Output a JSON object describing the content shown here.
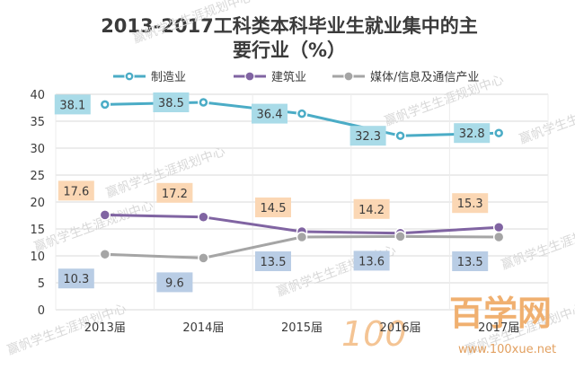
{
  "chart_data": {
    "type": "line",
    "title_line1": "2013-2017工科类本科毕业生就业集中的主",
    "title_line2": "要行业（%）",
    "categories": [
      "2013届",
      "2014届",
      "2015届",
      "2016届",
      "2017届"
    ],
    "ylim": [
      0,
      40
    ],
    "yticks": [
      0,
      5,
      10,
      15,
      20,
      25,
      30,
      35,
      40
    ],
    "yticks_text": [
      "0",
      "5",
      "10",
      "15",
      "20",
      "25",
      "30",
      "35",
      "40"
    ],
    "grid": true,
    "legend_position": "top",
    "series": [
      {
        "name": "制造业",
        "color": "#4bacc6",
        "label_bg": "#a9dbe8",
        "values": [
          38.1,
          38.5,
          36.4,
          32.3,
          32.8
        ],
        "labels": [
          "38.1",
          "38.5",
          "36.4",
          "32.3",
          "32.8"
        ]
      },
      {
        "name": "建筑业",
        "color": "#8064a2",
        "label_bg": "#fbd7b4",
        "values": [
          17.6,
          17.2,
          14.5,
          14.2,
          15.3
        ],
        "labels": [
          "17.6",
          "17.2",
          "14.5",
          "14.2",
          "15.3"
        ]
      },
      {
        "name": "媒体/信息及通信产业",
        "color": "#a5a5a5",
        "label_bg": "#b9cde5",
        "values": [
          10.3,
          9.6,
          13.5,
          13.6,
          13.5
        ],
        "labels": [
          "10.3",
          "9.6",
          "13.5",
          "13.6",
          "13.5"
        ]
      }
    ]
  },
  "watermark": {
    "text": "赢帆学生生涯规划中心",
    "logo_digits": "100",
    "logo_cn": "百学网",
    "logo_url": "www.100xue.net"
  }
}
